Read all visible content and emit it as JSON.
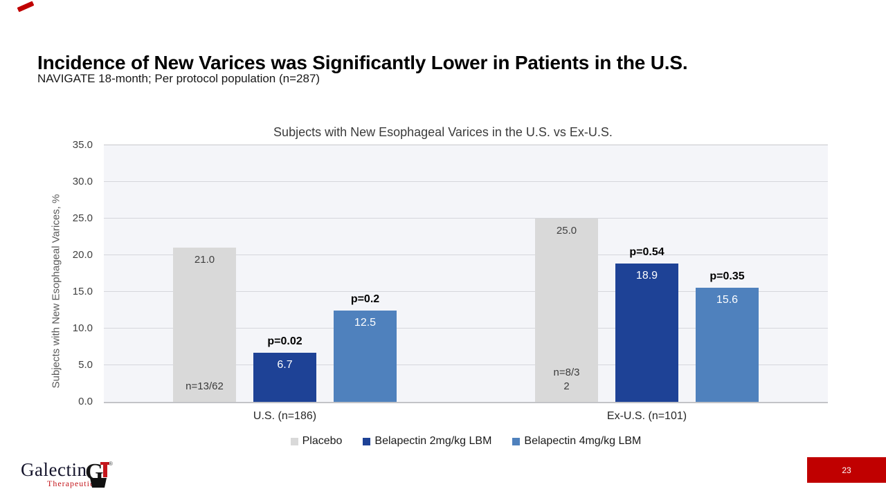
{
  "slide": {
    "title": "Incidence of New Varices was Significantly Lower in Patients in the U.S.",
    "subtitle": "NAVIGATE 18-month; Per protocol population (n=287)",
    "page_number": "23"
  },
  "footer": {
    "logo_text": "Galectin",
    "logo_subtext": "Therapeutics",
    "logo_mark": "G",
    "logo_reg": "®"
  },
  "colors": {
    "accent_red": "#C00000",
    "logo_red": "#C4161C",
    "plot_bg": "#F4F5F9",
    "gridline": "#D5D6DC",
    "placebo_gray": "#D9D9D9",
    "belapectin2_blue": "#1E4296",
    "belapectin4_blue": "#4F81BD"
  },
  "chart_data": {
    "type": "bar",
    "title": "Subjects with New Esophageal Varices in the U.S. vs Ex-U.S.",
    "ylabel": "Subjects with New Esophageal Varices, %",
    "xlabel": "",
    "ylim": [
      0,
      35
    ],
    "ytick_step": 5,
    "ytick_labels": [
      "0.0",
      "5.0",
      "10.0",
      "15.0",
      "20.0",
      "25.0",
      "30.0",
      "35.0"
    ],
    "grid": true,
    "legend_position": "bottom",
    "categories": [
      "U.S. (n=186)",
      "Ex-U.S. (n=101)"
    ],
    "series": [
      {
        "name": "Placebo",
        "color": "#D9D9D9",
        "values": [
          21.0,
          25.0
        ],
        "value_labels": [
          "21.0",
          "25.0"
        ],
        "value_label_style": "inside-top-dark",
        "n_labels": [
          "n=13/62",
          "n=8/3\n2"
        ]
      },
      {
        "name": "Belapectin 2mg/kg LBM",
        "color": "#1E4296",
        "values": [
          6.7,
          18.9
        ],
        "value_labels": [
          "6.7",
          "18.9"
        ],
        "value_label_style": "inside-top-white",
        "p_labels": [
          "p=0.02",
          "p=0.54"
        ]
      },
      {
        "name": "Belapectin 4mg/kg LBM",
        "color": "#4F81BD",
        "values": [
          12.5,
          15.6
        ],
        "value_labels": [
          "12.5",
          "15.6"
        ],
        "value_label_style": "inside-top-white",
        "p_labels": [
          "p=0.2",
          "p=0.35"
        ]
      }
    ]
  }
}
